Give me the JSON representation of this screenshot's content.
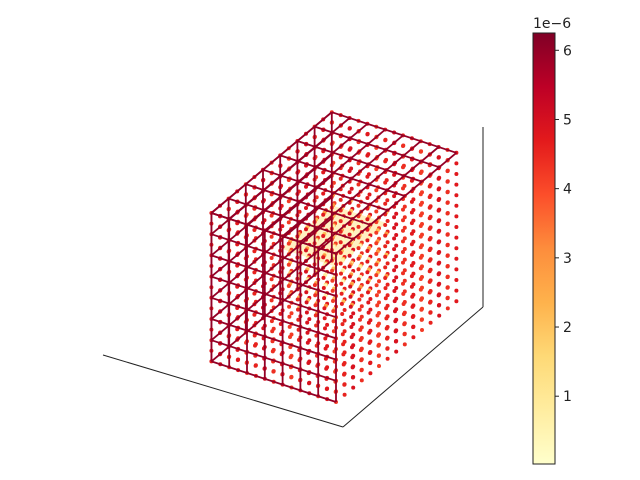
{
  "chart_data": {
    "type": "scatter",
    "projection": "3d",
    "axes_labels_shown": false,
    "grid": false,
    "colorbar": {
      "colormap": "YlOrRd",
      "min": 2e-08,
      "max": 6.25e-06,
      "ticks": [
        1,
        2,
        3,
        4,
        5,
        6
      ],
      "tick_labels": [
        "1",
        "2",
        "3",
        "4",
        "5",
        "6"
      ],
      "offset_text": "1e−6",
      "placement": "right"
    },
    "lattice": {
      "description_values": "points on a cubic grid; strong values on outer faces, weak values in the interior",
      "outer_value": 6e-06,
      "shell_value": 4.2e-06,
      "core_value": 3e-07
    }
  }
}
